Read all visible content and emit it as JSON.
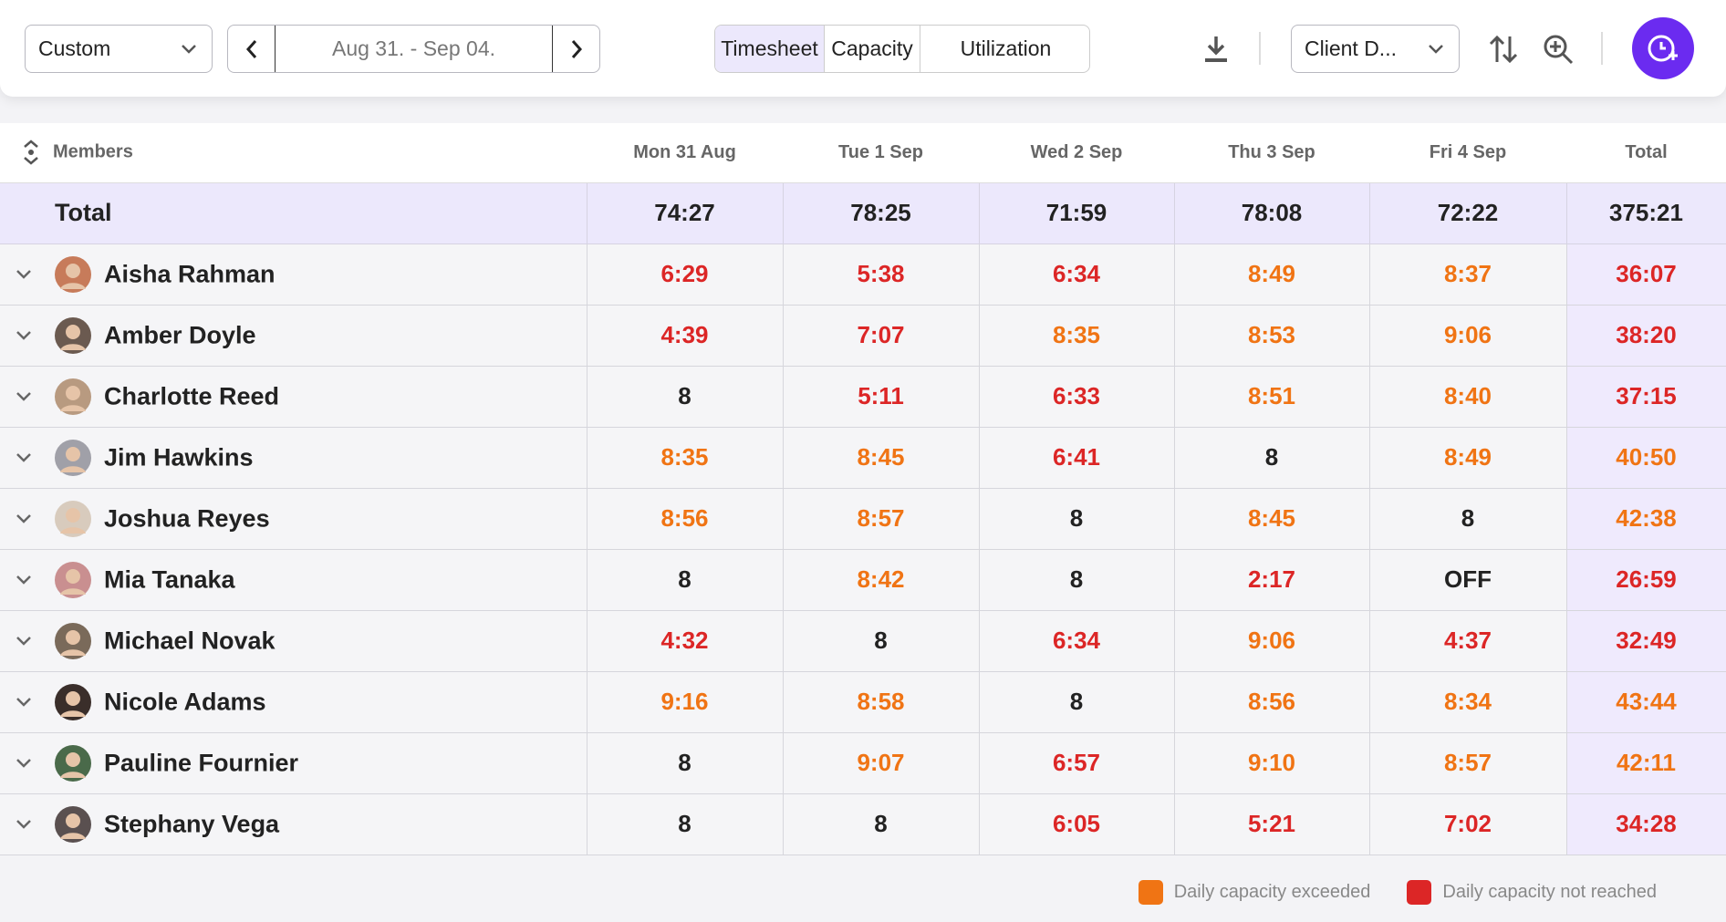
{
  "toolbar": {
    "range": "Custom",
    "date": "Aug 31. - Sep 04.",
    "tabs": [
      "Timesheet",
      "Capacity",
      "Utilization"
    ],
    "client": "Client D..."
  },
  "table": {
    "header": [
      "Members",
      "Mon 31 Aug",
      "Tue 1 Sep",
      "Wed 2 Sep",
      "Thu 3 Sep",
      "Fri 4 Sep",
      "Total"
    ],
    "total": {
      "label": "Total",
      "cells": [
        "74:27",
        "78:25",
        "71:59",
        "78:08",
        "72:22",
        "375:21"
      ]
    },
    "rows": [
      {
        "name": "Aisha Rahman",
        "cells": [
          "6:29",
          "5:38",
          "6:34",
          "8:49",
          "8:37",
          "36:07"
        ],
        "colors": [
          "#dc2626",
          "#dc2626",
          "#dc2626",
          "#f07414",
          "#f07414",
          "#dc2626"
        ]
      },
      {
        "name": "Amber Doyle",
        "cells": [
          "4:39",
          "7:07",
          "8:35",
          "8:53",
          "9:06",
          "38:20"
        ],
        "colors": [
          "#dc2626",
          "#dc2626",
          "#f07414",
          "#f07414",
          "#f07414",
          "#dc2626"
        ]
      },
      {
        "name": "Charlotte Reed",
        "cells": [
          "8",
          "5:11",
          "6:33",
          "8:51",
          "8:40",
          "37:15"
        ],
        "colors": [
          "#222222",
          "#dc2626",
          "#dc2626",
          "#f07414",
          "#f07414",
          "#dc2626"
        ]
      },
      {
        "name": "Jim Hawkins",
        "cells": [
          "8:35",
          "8:45",
          "6:41",
          "8",
          "8:49",
          "40:50"
        ],
        "colors": [
          "#f07414",
          "#f07414",
          "#dc2626",
          "#222222",
          "#f07414",
          "#f07414"
        ]
      },
      {
        "name": "Joshua Reyes",
        "cells": [
          "8:56",
          "8:57",
          "8",
          "8:45",
          "8",
          "42:38"
        ],
        "colors": [
          "#f07414",
          "#f07414",
          "#222222",
          "#f07414",
          "#222222",
          "#f07414"
        ]
      },
      {
        "name": "Mia Tanaka",
        "cells": [
          "8",
          "8:42",
          "8",
          "2:17",
          "OFF",
          "26:59"
        ],
        "colors": [
          "#222222",
          "#f07414",
          "#222222",
          "#dc2626",
          "#222222",
          "#dc2626"
        ]
      },
      {
        "name": "Michael Novak",
        "cells": [
          "4:32",
          "8",
          "6:34",
          "9:06",
          "4:37",
          "32:49"
        ],
        "colors": [
          "#dc2626",
          "#222222",
          "#dc2626",
          "#f07414",
          "#dc2626",
          "#dc2626"
        ]
      },
      {
        "name": "Nicole Adams",
        "cells": [
          "9:16",
          "8:58",
          "8",
          "8:56",
          "8:34",
          "43:44"
        ],
        "colors": [
          "#f07414",
          "#f07414",
          "#222222",
          "#f07414",
          "#f07414",
          "#f07414"
        ]
      },
      {
        "name": "Pauline Fournier",
        "cells": [
          "8",
          "9:07",
          "6:57",
          "9:10",
          "8:57",
          "42:11"
        ],
        "colors": [
          "#222222",
          "#f07414",
          "#dc2626",
          "#f07414",
          "#f07414",
          "#f07414"
        ]
      },
      {
        "name": "Stephany Vega",
        "cells": [
          "8",
          "8",
          "6:05",
          "5:21",
          "7:02",
          "34:28"
        ],
        "colors": [
          "#222222",
          "#222222",
          "#dc2626",
          "#dc2626",
          "#dc2626",
          "#dc2626"
        ]
      }
    ]
  },
  "legend": [
    {
      "label": "Daily capacity exceeded",
      "color": "#f07414"
    },
    {
      "label": "Daily capacity not reached",
      "color": "#dc2626"
    }
  ]
}
